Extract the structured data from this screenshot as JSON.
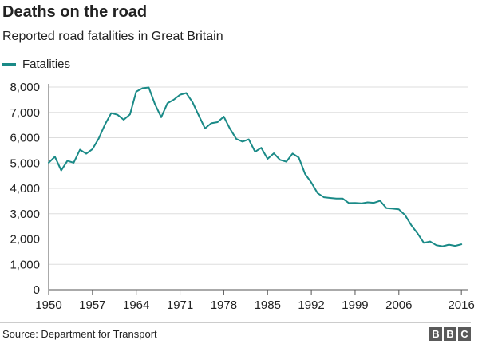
{
  "chart_data": {
    "type": "line",
    "title": "Deaths on the road",
    "subtitle": "Reported road fatalities in Great Britain",
    "xlabel": "",
    "ylabel": "",
    "xlim": [
      1950,
      2017
    ],
    "ylim": [
      0,
      8000
    ],
    "x_ticks": [
      1950,
      1957,
      1964,
      1971,
      1978,
      1985,
      1992,
      1999,
      2006,
      2016
    ],
    "y_ticks": [
      0,
      1000,
      2000,
      3000,
      4000,
      5000,
      6000,
      7000,
      8000
    ],
    "y_tick_labels": [
      "0",
      "1,000",
      "2,000",
      "3,000",
      "4,000",
      "5,000",
      "6,000",
      "7,000",
      "8,000"
    ],
    "grid": "horizontal",
    "legend_position": "top-left",
    "series": [
      {
        "name": "Fatalities",
        "color": "#1a8a87",
        "x": [
          1950,
          1951,
          1952,
          1953,
          1954,
          1955,
          1956,
          1957,
          1958,
          1959,
          1960,
          1961,
          1962,
          1963,
          1964,
          1965,
          1966,
          1967,
          1968,
          1969,
          1970,
          1971,
          1972,
          1973,
          1974,
          1975,
          1976,
          1977,
          1978,
          1979,
          1980,
          1981,
          1982,
          1983,
          1984,
          1985,
          1986,
          1987,
          1988,
          1989,
          1990,
          1991,
          1992,
          1993,
          1994,
          1995,
          1996,
          1997,
          1998,
          1999,
          2000,
          2001,
          2002,
          2003,
          2004,
          2005,
          2006,
          2007,
          2008,
          2009,
          2010,
          2011,
          2012,
          2013,
          2014,
          2015,
          2016
        ],
        "y": [
          5012,
          5250,
          4706,
          5090,
          5010,
          5526,
          5367,
          5550,
          5970,
          6520,
          6970,
          6908,
          6709,
          6922,
          7820,
          7952,
          7985,
          7319,
          6810,
          7365,
          7499,
          7699,
          7763,
          7406,
          6876,
          6366,
          6570,
          6614,
          6831,
          6352,
          5953,
          5846,
          5934,
          5445,
          5599,
          5165,
          5382,
          5125,
          5052,
          5373,
          5217,
          4568,
          4229,
          3814,
          3650,
          3621,
          3598,
          3599,
          3421,
          3423,
          3409,
          3450,
          3431,
          3508,
          3221,
          3201,
          3172,
          2946,
          2538,
          2222,
          1850,
          1901,
          1754,
          1713,
          1775,
          1730,
          1792
        ]
      }
    ]
  },
  "source_text": "Source: Department for Transport",
  "logo_letters": [
    "B",
    "B",
    "C"
  ],
  "colors": {
    "axis": "#555555",
    "grid": "#dddddd"
  }
}
